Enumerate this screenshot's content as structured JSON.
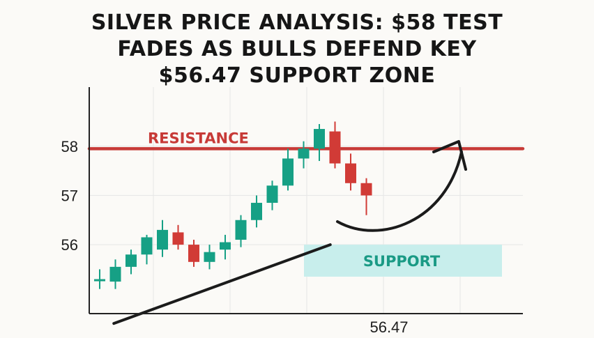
{
  "title_lines": [
    "SILVER PRICE ANALYSIS: $58 TEST",
    "FADES AS BULLS DEFEND KEY",
    "$56.47 SUPPORT ZONE"
  ],
  "colors": {
    "bull": "#16a085",
    "bear": "#d13b36",
    "resistance": "#c73a37",
    "support_fill": "#c8eeec",
    "support_text": "#1a9a85",
    "axis": "#222222",
    "grid": "#e6e6e6"
  },
  "chart_data": {
    "type": "candlestick",
    "title": "SILVER PRICE ANALYSIS: $58 TEST FADES AS BULLS DEFEND KEY $56.47 SUPPORT ZONE",
    "ytick_labels": [
      "56",
      "57",
      "58"
    ],
    "yticks": [
      56,
      57,
      58
    ],
    "ylim": [
      54.6,
      59.2
    ],
    "xtick_labels": [
      "56.47"
    ],
    "grid": true,
    "candles": [
      {
        "o": 55.3,
        "h": 55.5,
        "l": 55.1,
        "c": 55.3
      },
      {
        "o": 55.25,
        "h": 55.7,
        "l": 55.1,
        "c": 55.55
      },
      {
        "o": 55.55,
        "h": 55.9,
        "l": 55.4,
        "c": 55.8
      },
      {
        "o": 55.8,
        "h": 56.2,
        "l": 55.6,
        "c": 56.15
      },
      {
        "o": 55.9,
        "h": 56.5,
        "l": 55.75,
        "c": 56.3
      },
      {
        "o": 56.25,
        "h": 56.4,
        "l": 55.9,
        "c": 56.0
      },
      {
        "o": 56.0,
        "h": 56.1,
        "l": 55.55,
        "c": 55.65
      },
      {
        "o": 55.65,
        "h": 56.0,
        "l": 55.5,
        "c": 55.85
      },
      {
        "o": 55.9,
        "h": 56.2,
        "l": 55.7,
        "c": 56.05
      },
      {
        "o": 56.1,
        "h": 56.6,
        "l": 55.95,
        "c": 56.5
      },
      {
        "o": 56.5,
        "h": 57.0,
        "l": 56.35,
        "c": 56.85
      },
      {
        "o": 56.85,
        "h": 57.3,
        "l": 56.7,
        "c": 57.2
      },
      {
        "o": 57.2,
        "h": 57.95,
        "l": 57.1,
        "c": 57.75
      },
      {
        "o": 57.75,
        "h": 58.1,
        "l": 57.55,
        "c": 57.95
      },
      {
        "o": 57.95,
        "h": 58.45,
        "l": 57.7,
        "c": 58.35
      },
      {
        "o": 58.3,
        "h": 58.5,
        "l": 57.55,
        "c": 57.65
      },
      {
        "o": 57.65,
        "h": 57.85,
        "l": 57.1,
        "c": 57.25
      },
      {
        "o": 57.25,
        "h": 57.35,
        "l": 56.6,
        "c": 57.0
      }
    ],
    "resistance": {
      "label": "RESISTANCE",
      "value": 57.95
    },
    "support": {
      "label": "SUPPORT",
      "y_range": [
        55.35,
        56.0
      ]
    },
    "annotations": [
      {
        "type": "trendline",
        "from": [
          0.9,
          54.4
        ],
        "to": [
          14.7,
          56.0
        ]
      },
      {
        "type": "curved-arrow",
        "direction": "up-right"
      }
    ]
  }
}
